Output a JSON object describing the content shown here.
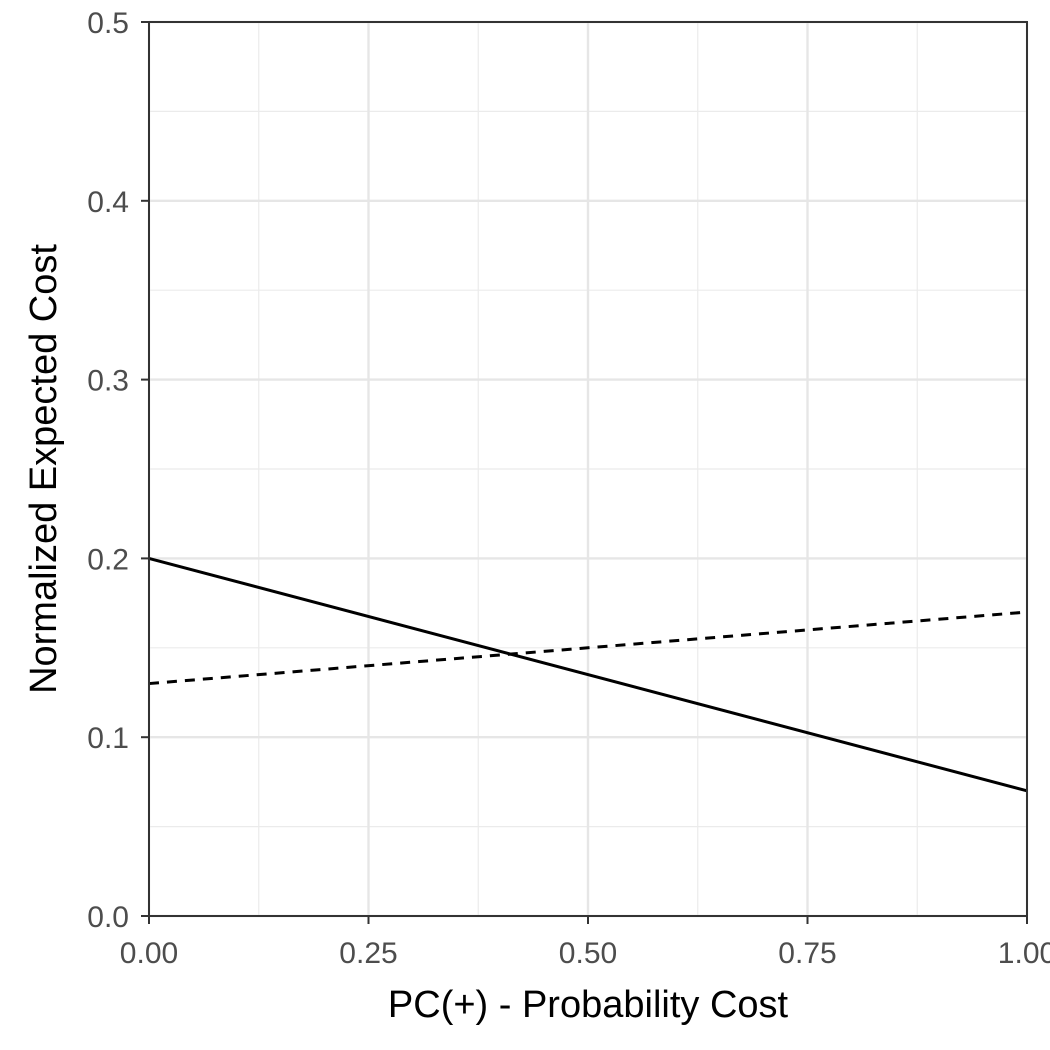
{
  "chart_data": {
    "type": "line",
    "title": "",
    "xlabel": "PC(+) - Probability Cost",
    "ylabel": "Normalized Expected Cost",
    "xlim": [
      0,
      1
    ],
    "ylim": [
      0,
      0.5
    ],
    "x_ticks": [
      {
        "value": 0,
        "label": "0.00"
      },
      {
        "value": 0.25,
        "label": "0.25"
      },
      {
        "value": 0.5,
        "label": "0.50"
      },
      {
        "value": 0.75,
        "label": "0.75"
      },
      {
        "value": 1,
        "label": "1.00"
      }
    ],
    "y_ticks": [
      {
        "value": 0,
        "label": "0.0"
      },
      {
        "value": 0.1,
        "label": "0.1"
      },
      {
        "value": 0.2,
        "label": "0.2"
      },
      {
        "value": 0.3,
        "label": "0.3"
      },
      {
        "value": 0.4,
        "label": "0.4"
      },
      {
        "value": 0.5,
        "label": "0.5"
      }
    ],
    "grid": true,
    "legend": "none",
    "series": [
      {
        "style": "solid",
        "color": "#000000",
        "x": [
          0,
          1
        ],
        "y": [
          0.2,
          0.07
        ]
      },
      {
        "style": "dashed",
        "color": "#000000",
        "x": [
          0,
          1
        ],
        "y": [
          0.13,
          0.17
        ]
      }
    ]
  }
}
